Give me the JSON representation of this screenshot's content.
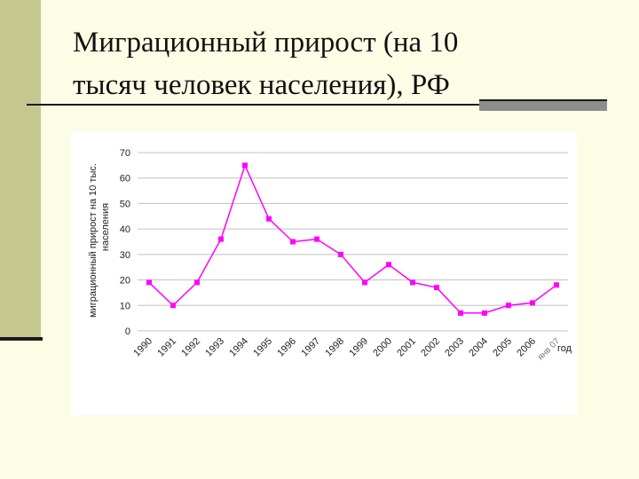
{
  "slide": {
    "title_line1": "Миграционный прирост (на 10",
    "title_line2": "тысяч человек населения), РФ"
  },
  "colors": {
    "background": "#fdfde6",
    "sidebar": "#c4c88f",
    "series": "#ff00ff",
    "grid": "#c0c0c0"
  },
  "chart_data": {
    "type": "line",
    "title": "",
    "ylabel_line1": "миграционный прирост на 10 тыс.",
    "ylabel_line2": "населения",
    "xlabel": "год",
    "ylim": [
      0,
      70
    ],
    "yticks": [
      "0",
      "10",
      "20",
      "30",
      "40",
      "50",
      "60",
      "70"
    ],
    "grid": true,
    "categories": [
      "1990",
      "1991",
      "1992",
      "1993",
      "1994",
      "1995",
      "1996",
      "1997",
      "1998",
      "1999",
      "2000",
      "2001",
      "2002",
      "2003",
      "2004",
      "2005",
      "2006",
      "янв 07"
    ],
    "series": [
      {
        "values": [
          19,
          10,
          19,
          36,
          65,
          44,
          35,
          36,
          30,
          19,
          26,
          19,
          17,
          7,
          7,
          10,
          11,
          18
        ]
      }
    ]
  }
}
